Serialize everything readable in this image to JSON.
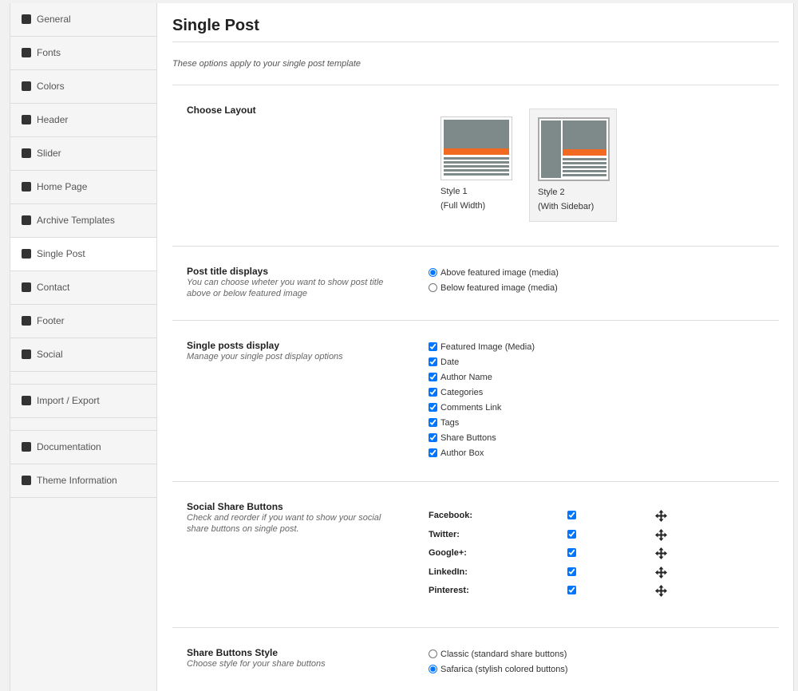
{
  "sidebar": {
    "active": 7,
    "groups": [
      [
        "General",
        "Fonts",
        "Colors",
        "Header",
        "Slider",
        "Home Page",
        "Archive Templates",
        "Single Post",
        "Contact",
        "Footer",
        "Social"
      ],
      [
        "Import / Export"
      ],
      [
        "Documentation",
        "Theme Information"
      ]
    ]
  },
  "page": {
    "title": "Single Post",
    "description": "These options apply to your single post template"
  },
  "layout": {
    "label": "Choose Layout",
    "selected": 1,
    "options": [
      {
        "name": "Style 1",
        "caption": "(Full Width)"
      },
      {
        "name": "Style 2",
        "caption": "(With Sidebar)"
      }
    ]
  },
  "title_position": {
    "label": "Post title displays",
    "help": "You can choose wheter you want to show post title above or below featured image",
    "selected": 0,
    "options": [
      "Above featured image (media)",
      "Below featured image (media)"
    ]
  },
  "display": {
    "label": "Single posts display",
    "help": "Manage your single post display options",
    "options": [
      "Featured Image (Media)",
      "Date",
      "Author Name",
      "Categories",
      "Comments Link",
      "Tags",
      "Share Buttons",
      "Author Box"
    ]
  },
  "share": {
    "label": "Social Share Buttons",
    "help": "Check and reorder if you want to show your social share buttons on single post.",
    "networks": [
      "Facebook:",
      "Twitter:",
      "Google+:",
      "LinkedIn:",
      "Pinterest:"
    ]
  },
  "share_style": {
    "label": "Share Buttons Style",
    "help": "Choose style for your share buttons",
    "selected": 1,
    "options": [
      "Classic (standard share buttons)",
      "Safarica (stylish colored buttons)"
    ]
  }
}
